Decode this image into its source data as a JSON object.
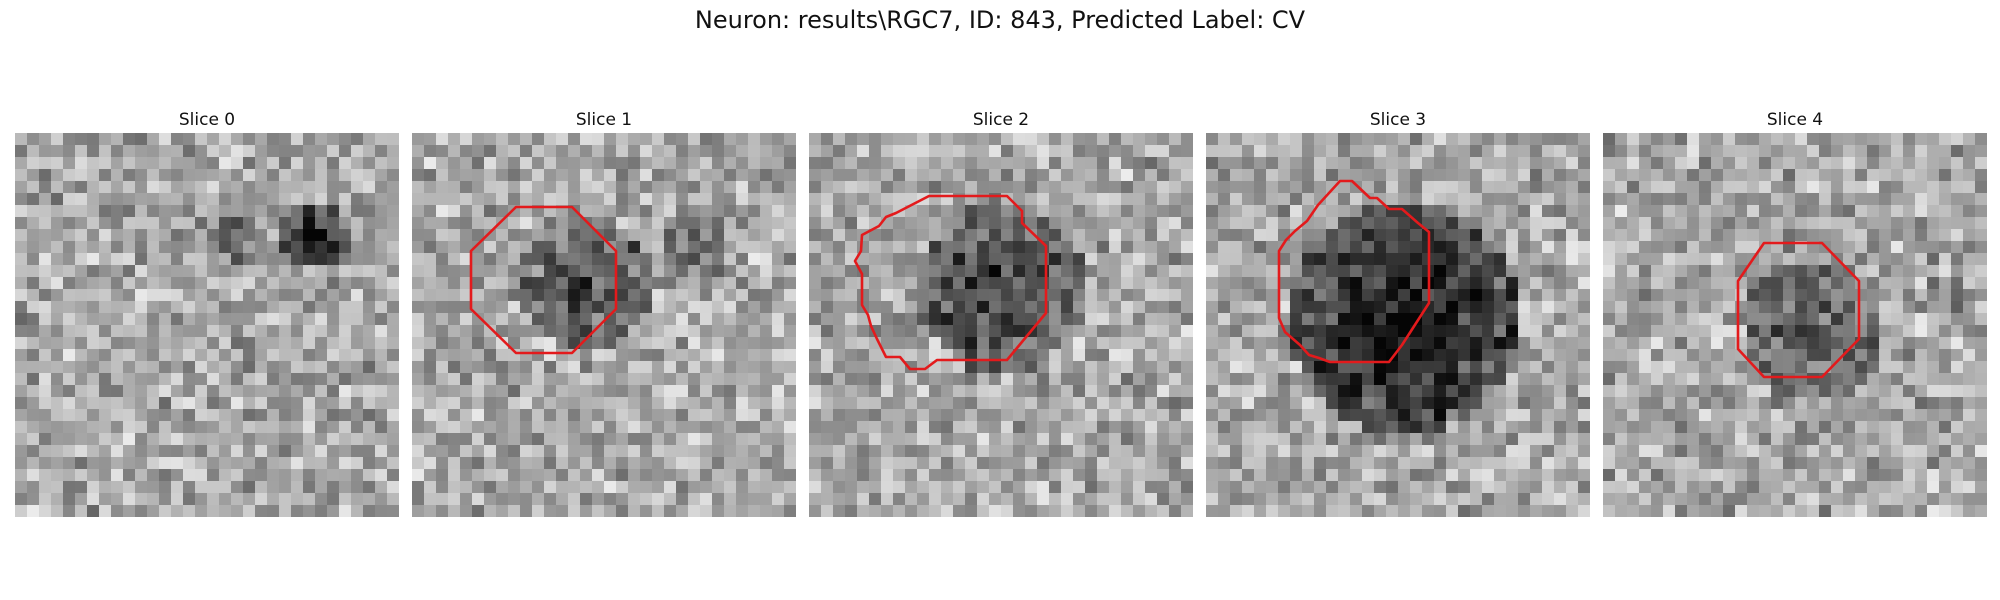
{
  "figure": {
    "title": "Neuron: results\\RGC7, ID: 843, Predicted Label: CV"
  },
  "panels": [
    {
      "title": "Slice 0",
      "has_contour": false
    },
    {
      "title": "Slice 1",
      "has_contour": true
    },
    {
      "title": "Slice 2",
      "has_contour": true
    },
    {
      "title": "Slice 3",
      "has_contour": true
    },
    {
      "title": "Slice 4",
      "has_contour": true
    }
  ],
  "contour_color": "#e31a1c",
  "colormap": "grayscale"
}
